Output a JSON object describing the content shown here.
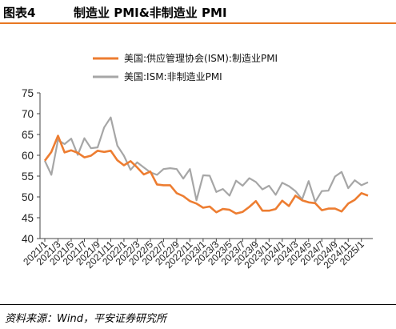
{
  "header": {
    "label": "图表4",
    "title": "制造业 PMI&非制造业 PMI"
  },
  "footer": {
    "source": "资料来源：Wind，平安证券研究所"
  },
  "chart_data": {
    "type": "line",
    "ylim": [
      40,
      75
    ],
    "yticks": [
      40,
      45,
      50,
      55,
      60,
      65,
      70,
      75
    ],
    "xticks": [
      "2021/1",
      "2021/3",
      "2021/5",
      "2021/7",
      "2021/9",
      "2021/11",
      "2022/1",
      "2022/3",
      "2022/5",
      "2022/7",
      "2022/9",
      "2022/11",
      "2023/1",
      "2023/3",
      "2023/5",
      "2023/7",
      "2023/9",
      "2023/11",
      "2024/1",
      "2024/3",
      "2024/5",
      "2024/7",
      "2024/9",
      "2024/11",
      "2025/1"
    ],
    "legend_position": "top-center",
    "grid": false,
    "series": [
      {
        "name": "美国:供应管理协会(ISM):制造业PMI",
        "color": "#ed7d31",
        "values": [
          58.7,
          60.8,
          64.7,
          60.7,
          61.2,
          60.6,
          59.5,
          59.9,
          61.1,
          60.8,
          61.1,
          58.8,
          57.6,
          58.6,
          57.1,
          55.4,
          56.1,
          53.0,
          52.8,
          52.8,
          50.9,
          50.2,
          49.0,
          48.4,
          47.4,
          47.7,
          46.3,
          47.1,
          46.9,
          46.0,
          46.4,
          47.6,
          49.0,
          46.7,
          46.7,
          47.1,
          49.1,
          47.8,
          50.3,
          49.2,
          48.7,
          48.5,
          46.8,
          47.2,
          47.2,
          46.5,
          48.4,
          49.3,
          50.9,
          50.3
        ]
      },
      {
        "name": "美国:ISM:非制造业PMI",
        "color": "#a6a6a6",
        "values": [
          58.7,
          55.3,
          63.7,
          62.7,
          64.0,
          60.1,
          64.1,
          61.7,
          61.9,
          66.7,
          69.1,
          62.3,
          59.9,
          56.5,
          58.3,
          57.1,
          55.9,
          55.3,
          56.7,
          56.9,
          56.7,
          54.4,
          56.7,
          49.2,
          55.2,
          55.1,
          51.2,
          51.9,
          50.3,
          53.9,
          52.7,
          54.5,
          53.6,
          51.8,
          52.7,
          50.5,
          53.4,
          52.6,
          51.4,
          49.4,
          53.8,
          48.8,
          51.4,
          51.5,
          54.9,
          56.0,
          52.1,
          54.0,
          52.8,
          53.5
        ]
      }
    ]
  }
}
